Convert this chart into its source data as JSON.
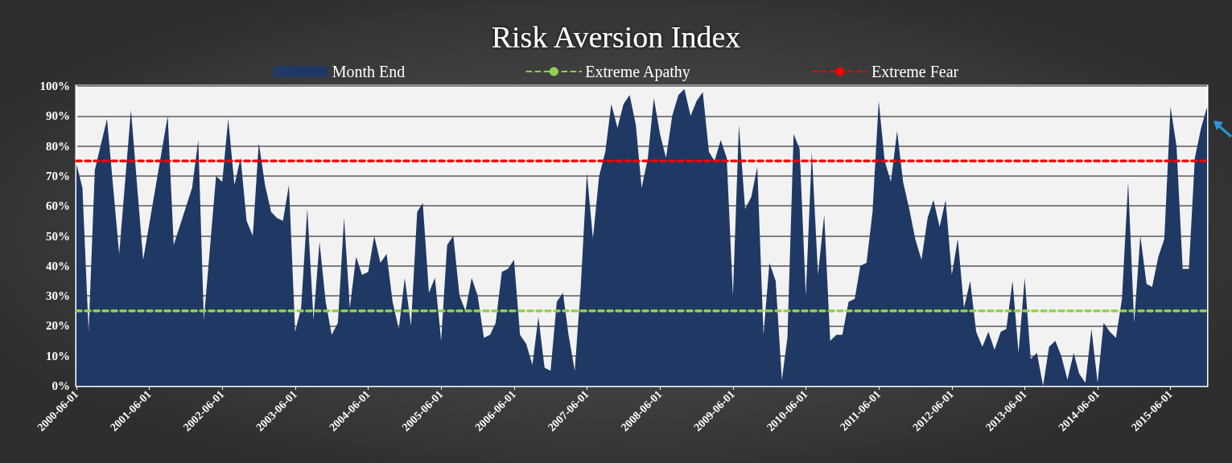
{
  "chart_data": {
    "type": "area",
    "title": "Risk Aversion Index",
    "x": [
      "2000-06",
      "2000-07",
      "2000-08",
      "2000-09",
      "2000-11",
      "2001-01",
      "2001-03",
      "2001-05",
      "2001-09",
      "2001-10",
      "2002-01",
      "2002-02",
      "2002-03",
      "2002-05",
      "2002-06",
      "2002-07",
      "2002-08",
      "2002-09",
      "2002-10",
      "2002-11",
      "2002-12",
      "2003-01",
      "2003-02",
      "2003-03",
      "2003-04",
      "2003-05",
      "2003-06",
      "2003-07",
      "2003-08",
      "2003-09",
      "2003-10",
      "2003-11",
      "2003-12",
      "2004-01",
      "2004-02",
      "2004-03",
      "2004-04",
      "2004-05",
      "2004-06",
      "2004-07",
      "2004-08",
      "2004-09",
      "2004-10",
      "2004-11",
      "2004-12",
      "2005-01",
      "2005-02",
      "2005-03",
      "2005-04",
      "2005-05",
      "2005-06",
      "2005-07",
      "2005-08",
      "2005-09",
      "2005-10",
      "2005-11",
      "2005-12",
      "2006-01",
      "2006-02",
      "2006-03",
      "2006-04",
      "2006-05",
      "2006-06",
      "2006-07",
      "2006-08",
      "2006-09",
      "2006-10",
      "2006-11",
      "2006-12",
      "2007-01",
      "2007-02",
      "2007-03",
      "2007-04",
      "2007-05",
      "2007-06",
      "2007-07",
      "2007-08",
      "2007-09",
      "2007-10",
      "2007-11",
      "2007-12",
      "2008-01",
      "2008-02",
      "2008-03",
      "2008-04",
      "2008-05",
      "2008-06",
      "2008-07",
      "2008-08",
      "2008-09",
      "2008-10",
      "2008-11",
      "2008-12",
      "2009-01",
      "2009-02",
      "2009-03",
      "2009-04",
      "2009-05",
      "2009-06",
      "2009-07",
      "2009-08",
      "2009-09",
      "2009-10",
      "2009-11",
      "2009-12",
      "2010-01",
      "2010-02",
      "2010-03",
      "2010-04",
      "2010-05",
      "2010-06",
      "2010-07",
      "2010-08",
      "2010-09",
      "2010-10",
      "2010-11",
      "2010-12",
      "2011-01",
      "2011-02",
      "2011-03",
      "2011-04",
      "2011-05",
      "2011-06",
      "2011-07",
      "2011-08",
      "2011-09",
      "2011-10",
      "2011-11",
      "2011-12",
      "2012-01",
      "2012-02",
      "2012-03",
      "2012-04",
      "2012-05",
      "2012-06",
      "2012-07",
      "2012-08",
      "2012-09",
      "2012-10",
      "2012-11",
      "2012-12",
      "2013-01",
      "2013-02",
      "2013-03",
      "2013-04",
      "2013-05",
      "2013-06",
      "2013-07",
      "2013-08",
      "2013-09",
      "2013-10",
      "2013-11",
      "2013-12",
      "2014-01",
      "2014-02",
      "2014-03",
      "2014-04",
      "2014-05",
      "2014-06",
      "2014-07",
      "2014-08",
      "2014-09",
      "2014-10",
      "2014-11",
      "2014-12",
      "2015-01",
      "2015-02",
      "2015-03",
      "2015-04",
      "2015-05",
      "2015-06",
      "2015-07",
      "2015-08",
      "2015-09",
      "2015-10",
      "2015-11",
      "2015-12"
    ],
    "series": [
      {
        "name": "Month End",
        "color": "#203864",
        "values": [
          74,
          66,
          18,
          72,
          89,
          44,
          92,
          42,
          90,
          47,
          66,
          82,
          22,
          70,
          68,
          89,
          67,
          76,
          55,
          50,
          81,
          67,
          58,
          56,
          55,
          67,
          18,
          26,
          59,
          22,
          48,
          28,
          17,
          21,
          56,
          26,
          43,
          37,
          38,
          50,
          41,
          44,
          28,
          19,
          36,
          20,
          58,
          61,
          31,
          36,
          15,
          47,
          50,
          30,
          25,
          36,
          30,
          16,
          17,
          21,
          38,
          39,
          42,
          17,
          14,
          7,
          23,
          6,
          5,
          28,
          31,
          17,
          5,
          33,
          71,
          49,
          70,
          78,
          94,
          86,
          94,
          97,
          87,
          66,
          76,
          96,
          84,
          76,
          90,
          97,
          99,
          90,
          95,
          98,
          78,
          75,
          82,
          76,
          30,
          87,
          59,
          63,
          73,
          17,
          41,
          35,
          2,
          16,
          84,
          79,
          30,
          78,
          37,
          57,
          15,
          17,
          17,
          28,
          29,
          40,
          41,
          58,
          95,
          75,
          68,
          85,
          68,
          59,
          49,
          42,
          56,
          62,
          53,
          62,
          37,
          49,
          26,
          35,
          18,
          13,
          18,
          12,
          18,
          19,
          35,
          11,
          36,
          9,
          11,
          0,
          13,
          15,
          10,
          2,
          11,
          4,
          1,
          19,
          1,
          21,
          18,
          16,
          29,
          68,
          21,
          50,
          34,
          33,
          43,
          49,
          93,
          80,
          39,
          39,
          76,
          86,
          93
        ]
      }
    ],
    "ref_lines": [
      {
        "axis": "y",
        "value": 25,
        "label": "Extreme Apathy",
        "color": "#92d050",
        "line_style": "dashed"
      },
      {
        "axis": "y",
        "value": 75,
        "label": "Extreme Fear",
        "color": "#ff0000",
        "line_style": "dashed"
      }
    ],
    "xlim": [
      "2000-06",
      "2015-12"
    ],
    "xticks": [
      "2000-06-01",
      "2001-06-01",
      "2002-06-01",
      "2003-06-01",
      "2004-06-01",
      "2005-06-01",
      "2006-06-01",
      "2007-06-01",
      "2008-06-01",
      "2009-06-01",
      "2010-06-01",
      "2011-06-01",
      "2012-06-01",
      "2013-06-01",
      "2014-06-01",
      "2015-06-01"
    ],
    "ylim": [
      0,
      100
    ],
    "yticks": [
      {
        "value": 0,
        "label": "0%"
      },
      {
        "value": 10,
        "label": "10%"
      },
      {
        "value": 20,
        "label": "20%"
      },
      {
        "value": 30,
        "label": "30%"
      },
      {
        "value": 40,
        "label": "40%"
      },
      {
        "value": 50,
        "label": "50%"
      },
      {
        "value": 60,
        "label": "60%"
      },
      {
        "value": 70,
        "label": "70%"
      },
      {
        "value": 80,
        "label": "80%"
      },
      {
        "value": 90,
        "label": "90%"
      },
      {
        "value": 100,
        "label": "100%"
      }
    ],
    "grid": "y",
    "legend": "top",
    "marker": "none"
  }
}
